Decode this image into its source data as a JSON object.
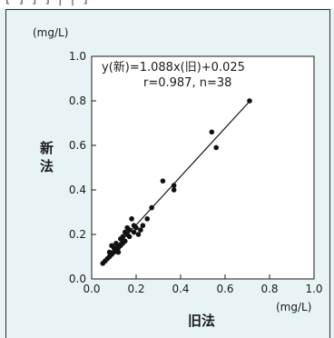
{
  "header_fragment": "[*]*]*]*|*|*]",
  "chart_data": {
    "type": "scatter",
    "xlabel": "旧法",
    "ylabel": "新法",
    "x_unit": "(mg/L)",
    "y_unit": "(mg/L)",
    "xlim": [
      0,
      1.0
    ],
    "ylim": [
      0,
      1.0
    ],
    "x_ticks": [
      "0.0",
      "0.2",
      "0.4",
      "0.6",
      "0.8",
      "1.0"
    ],
    "y_ticks": [
      "0.0",
      "0.2",
      "0.4",
      "0.6",
      "0.8",
      "1.0"
    ],
    "annotation_line1": "y(新)=1.088x(旧)+0.025",
    "annotation_line2": "r=0.987, n=38",
    "regression": {
      "slope": 1.088,
      "intercept": 0.025,
      "x_range": [
        0.05,
        0.71
      ]
    },
    "points": [
      [
        0.05,
        0.07
      ],
      [
        0.06,
        0.08
      ],
      [
        0.07,
        0.09
      ],
      [
        0.08,
        0.1
      ],
      [
        0.09,
        0.11
      ],
      [
        0.09,
        0.15
      ],
      [
        0.1,
        0.12
      ],
      [
        0.1,
        0.14
      ],
      [
        0.11,
        0.13
      ],
      [
        0.11,
        0.16
      ],
      [
        0.12,
        0.12
      ],
      [
        0.12,
        0.14
      ],
      [
        0.13,
        0.15
      ],
      [
        0.13,
        0.18
      ],
      [
        0.14,
        0.16
      ],
      [
        0.14,
        0.19
      ],
      [
        0.15,
        0.17
      ],
      [
        0.15,
        0.21
      ],
      [
        0.16,
        0.2
      ],
      [
        0.17,
        0.19
      ],
      [
        0.17,
        0.22
      ],
      [
        0.18,
        0.27
      ],
      [
        0.19,
        0.21
      ],
      [
        0.2,
        0.23
      ],
      [
        0.21,
        0.2
      ],
      [
        0.22,
        0.22
      ],
      [
        0.23,
        0.24
      ],
      [
        0.25,
        0.27
      ],
      [
        0.27,
        0.32
      ],
      [
        0.32,
        0.44
      ],
      [
        0.37,
        0.4
      ],
      [
        0.37,
        0.42
      ],
      [
        0.54,
        0.66
      ],
      [
        0.56,
        0.59
      ],
      [
        0.71,
        0.8
      ],
      [
        0.08,
        0.12
      ],
      [
        0.16,
        0.23
      ],
      [
        0.19,
        0.24
      ]
    ]
  }
}
